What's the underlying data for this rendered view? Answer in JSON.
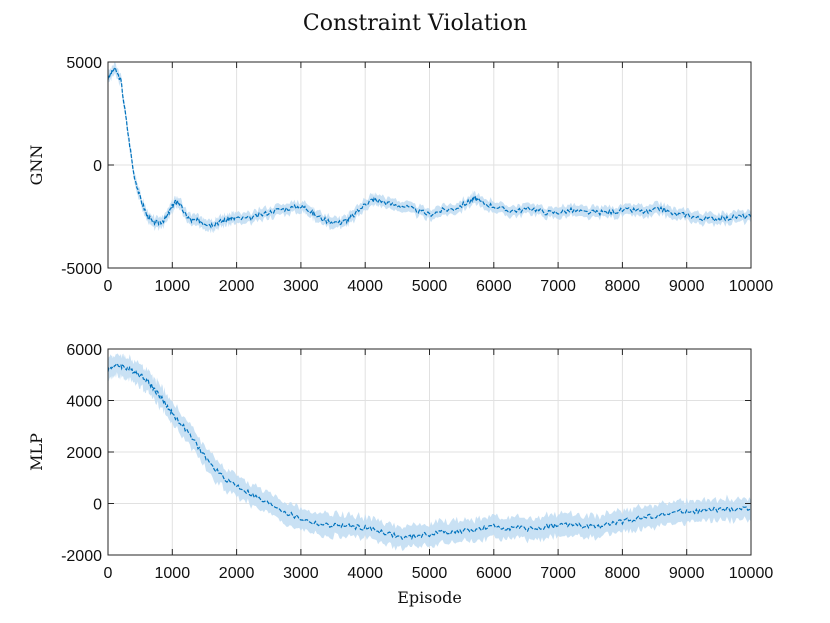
{
  "title": "Constraint Violation",
  "chart_data": [
    {
      "type": "line",
      "ylabel": "GNN",
      "xlabel": "",
      "xlim": [
        0,
        10000
      ],
      "ylim": [
        -5000,
        5000
      ],
      "xticks": [
        "0",
        "1000",
        "2000",
        "3000",
        "4000",
        "5000",
        "6000",
        "7000",
        "8000",
        "9000",
        "10000"
      ],
      "yticks": [
        "-5000",
        "0",
        "5000"
      ],
      "grid": true,
      "color": "#0072BD",
      "band_color": "#bfdcf2",
      "band_halfwidth": 250,
      "series": [
        {
          "name": "GNN",
          "x": [
            0,
            100,
            200,
            300,
            400,
            500,
            600,
            700,
            800,
            900,
            1000,
            1050,
            1100,
            1200,
            1300,
            1400,
            1500,
            1600,
            1700,
            1800,
            1900,
            2000,
            2200,
            2400,
            2600,
            2800,
            3000,
            3100,
            3200,
            3400,
            3600,
            3700,
            3800,
            4000,
            4100,
            4200,
            4400,
            4600,
            4800,
            5000,
            5200,
            5400,
            5600,
            5700,
            5800,
            6000,
            6200,
            6400,
            6600,
            6800,
            7000,
            7200,
            7400,
            7600,
            7800,
            8000,
            8200,
            8400,
            8600,
            8800,
            9000,
            9200,
            9400,
            9600,
            9800,
            10000
          ],
          "values": [
            4200,
            4700,
            4100,
            1800,
            -400,
            -1600,
            -2400,
            -2800,
            -2800,
            -2600,
            -2000,
            -1800,
            -1800,
            -2400,
            -2700,
            -2700,
            -2800,
            -2900,
            -2800,
            -2700,
            -2600,
            -2600,
            -2600,
            -2400,
            -2200,
            -2100,
            -2000,
            -2100,
            -2400,
            -2700,
            -2800,
            -2700,
            -2500,
            -1900,
            -1700,
            -1700,
            -1900,
            -2000,
            -2200,
            -2400,
            -2200,
            -2100,
            -1800,
            -1600,
            -1800,
            -2000,
            -2200,
            -2200,
            -2100,
            -2300,
            -2300,
            -2200,
            -2300,
            -2300,
            -2300,
            -2200,
            -2200,
            -2300,
            -2100,
            -2400,
            -2400,
            -2600,
            -2600,
            -2600,
            -2500,
            -2500
          ]
        }
      ]
    },
    {
      "type": "line",
      "ylabel": "MLP",
      "xlabel": "Episode",
      "xlim": [
        0,
        10000
      ],
      "ylim": [
        -2000,
        6000
      ],
      "xticks": [
        "0",
        "1000",
        "2000",
        "3000",
        "4000",
        "5000",
        "6000",
        "7000",
        "8000",
        "9000",
        "10000"
      ],
      "yticks": [
        "-2000",
        "0",
        "2000",
        "4000",
        "6000"
      ],
      "grid": true,
      "color": "#0072BD",
      "band_color": "#bfdcf2",
      "band_halfwidth": 400,
      "series": [
        {
          "name": "MLP",
          "x": [
            0,
            100,
            200,
            300,
            400,
            500,
            600,
            700,
            800,
            900,
            1000,
            1200,
            1400,
            1600,
            1800,
            2000,
            2200,
            2400,
            2600,
            2800,
            3000,
            3200,
            3400,
            3600,
            3800,
            4000,
            4200,
            4400,
            4600,
            4800,
            5000,
            5200,
            5400,
            5600,
            5800,
            6000,
            6200,
            6400,
            6600,
            6800,
            7000,
            7200,
            7400,
            7600,
            7800,
            8000,
            8200,
            8400,
            8600,
            8800,
            9000,
            9200,
            9400,
            9600,
            9800,
            10000
          ],
          "values": [
            5200,
            5350,
            5350,
            5250,
            5150,
            5000,
            4800,
            4500,
            4200,
            3850,
            3500,
            2900,
            2200,
            1500,
            1000,
            700,
            400,
            100,
            -100,
            -400,
            -600,
            -750,
            -850,
            -850,
            -900,
            -950,
            -1050,
            -1200,
            -1350,
            -1250,
            -1200,
            -1100,
            -1100,
            -1050,
            -1000,
            -900,
            -950,
            -950,
            -1000,
            -900,
            -850,
            -800,
            -900,
            -900,
            -800,
            -700,
            -600,
            -500,
            -450,
            -350,
            -300,
            -300,
            -250,
            -250,
            -200,
            -200
          ]
        }
      ]
    }
  ]
}
